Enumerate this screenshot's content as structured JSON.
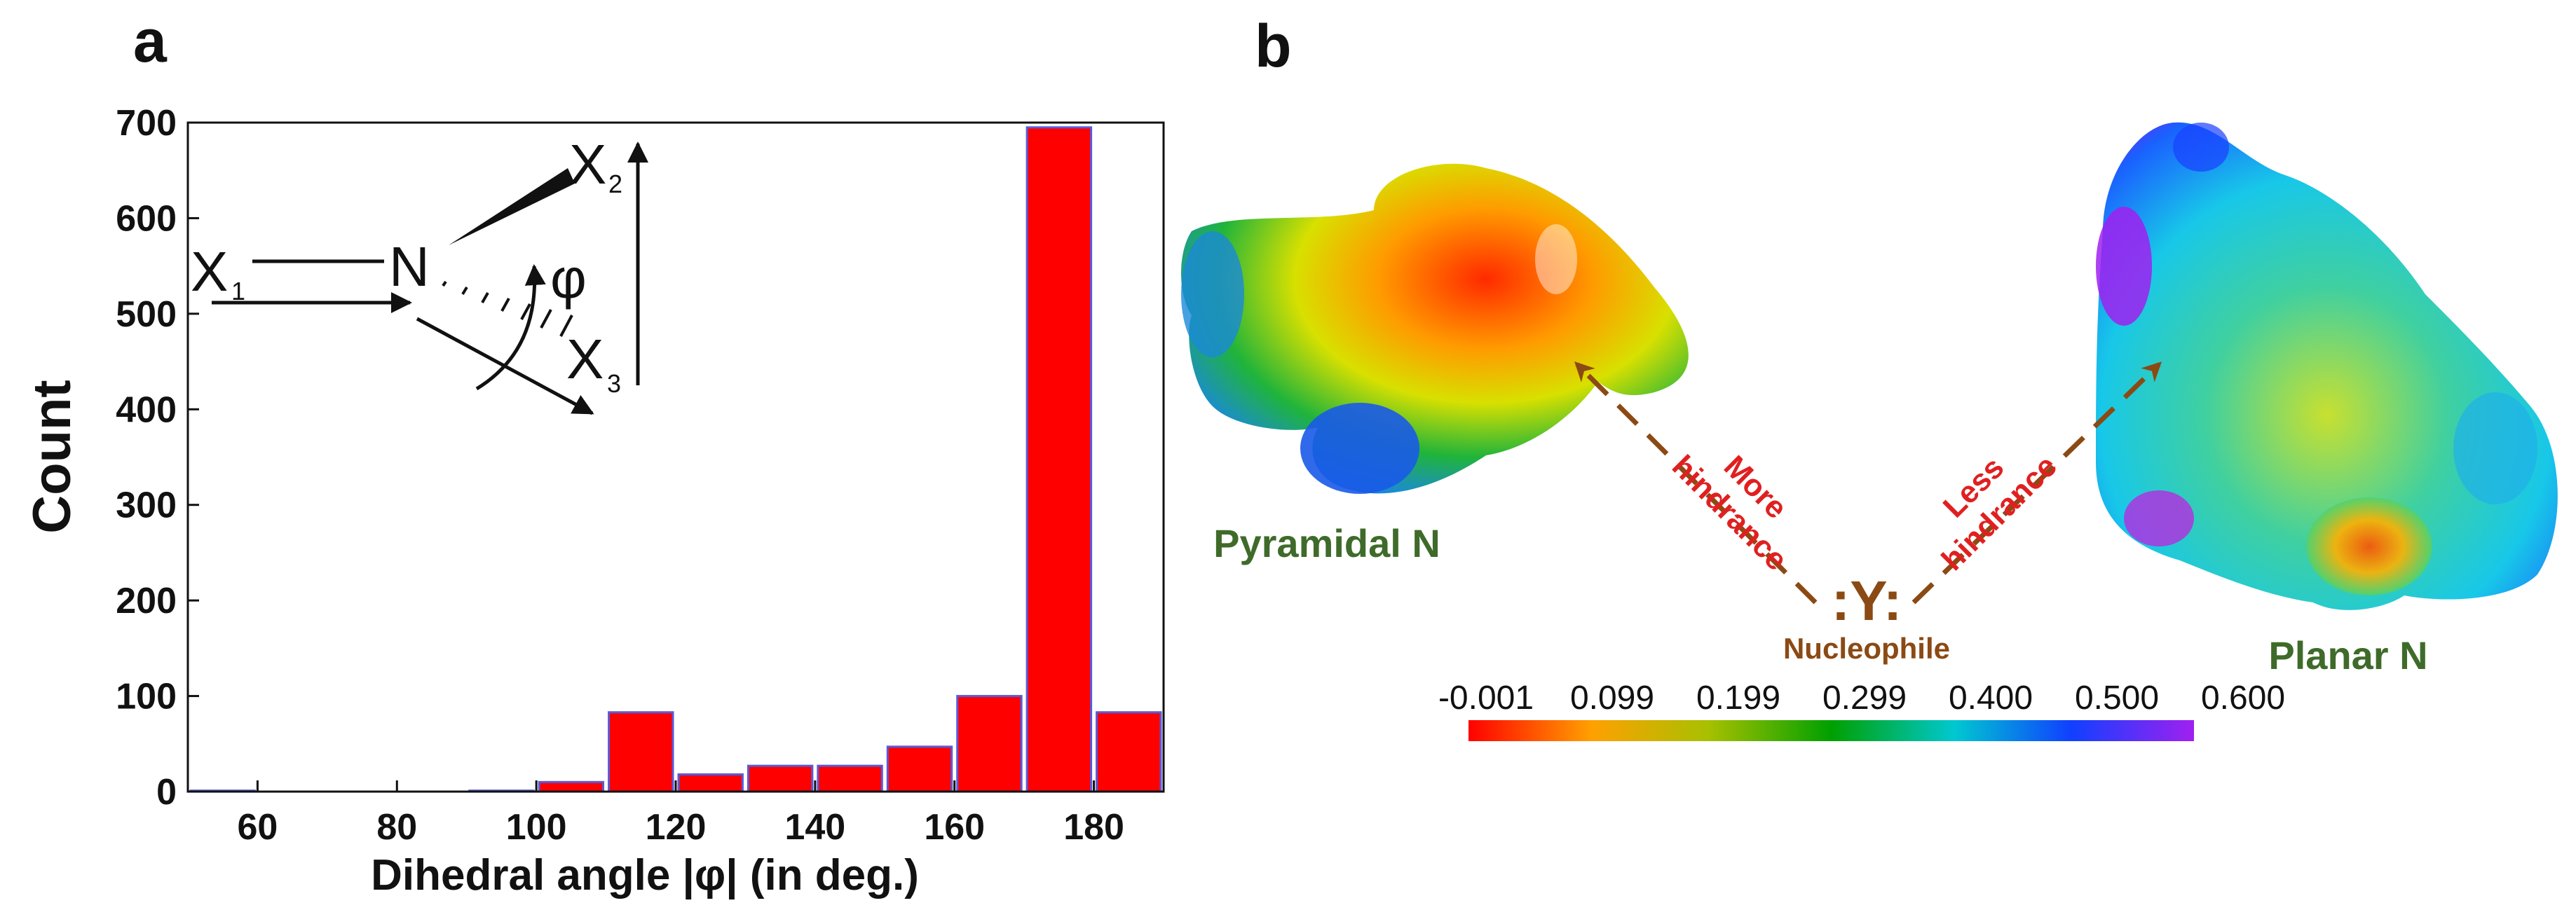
{
  "panels": {
    "a": {
      "letter": "a"
    },
    "b": {
      "letter": "b"
    }
  },
  "chart_data": {
    "type": "bar",
    "title": "",
    "xlabel": "Dihedral angle |φ| (in deg.)",
    "ylabel": "Count",
    "xlim": [
      50,
      190
    ],
    "ylim": [
      0,
      700
    ],
    "xticks": [
      60,
      80,
      100,
      120,
      140,
      160,
      180
    ],
    "yticks": [
      0,
      100,
      200,
      300,
      400,
      500,
      600,
      700
    ],
    "bin_width": 10,
    "bin_centers": [
      55,
      65,
      75,
      85,
      95,
      105,
      115,
      125,
      135,
      145,
      155,
      165,
      175,
      185
    ],
    "values": [
      1,
      0,
      0,
      0,
      1,
      10,
      83,
      18,
      27,
      27,
      47,
      100,
      695,
      83
    ],
    "bar_color": "#ff0000",
    "bar_edge_color": "#5a5ad8",
    "grid": false,
    "legend": "none"
  },
  "inset_scheme": {
    "atom_x1": "X",
    "sub_1": "1",
    "atom_n": "N",
    "atom_x2": "X",
    "sub_2": "2",
    "atom_x3": "X",
    "sub_3": "3",
    "angle_symbol": "φ"
  },
  "panel_b": {
    "pyramidal_label": "Pyramidal N",
    "planar_label": "Planar N",
    "more_line1": "More",
    "more_line2": "hindrance",
    "less_line1": "Less",
    "less_line2": "hindrance",
    "nucleophile_symbol": ":Y:",
    "nucleophile_label": "Nucleophile",
    "colorbar": {
      "ticks": [
        "-0.001",
        "0.099",
        "0.199",
        "0.299",
        "0.400",
        "0.500",
        "0.600"
      ],
      "colors": [
        "#ff0000",
        "#ffa000",
        "#a8c000",
        "#00a000",
        "#00c8d0",
        "#1040ff",
        "#a020f0"
      ]
    }
  }
}
